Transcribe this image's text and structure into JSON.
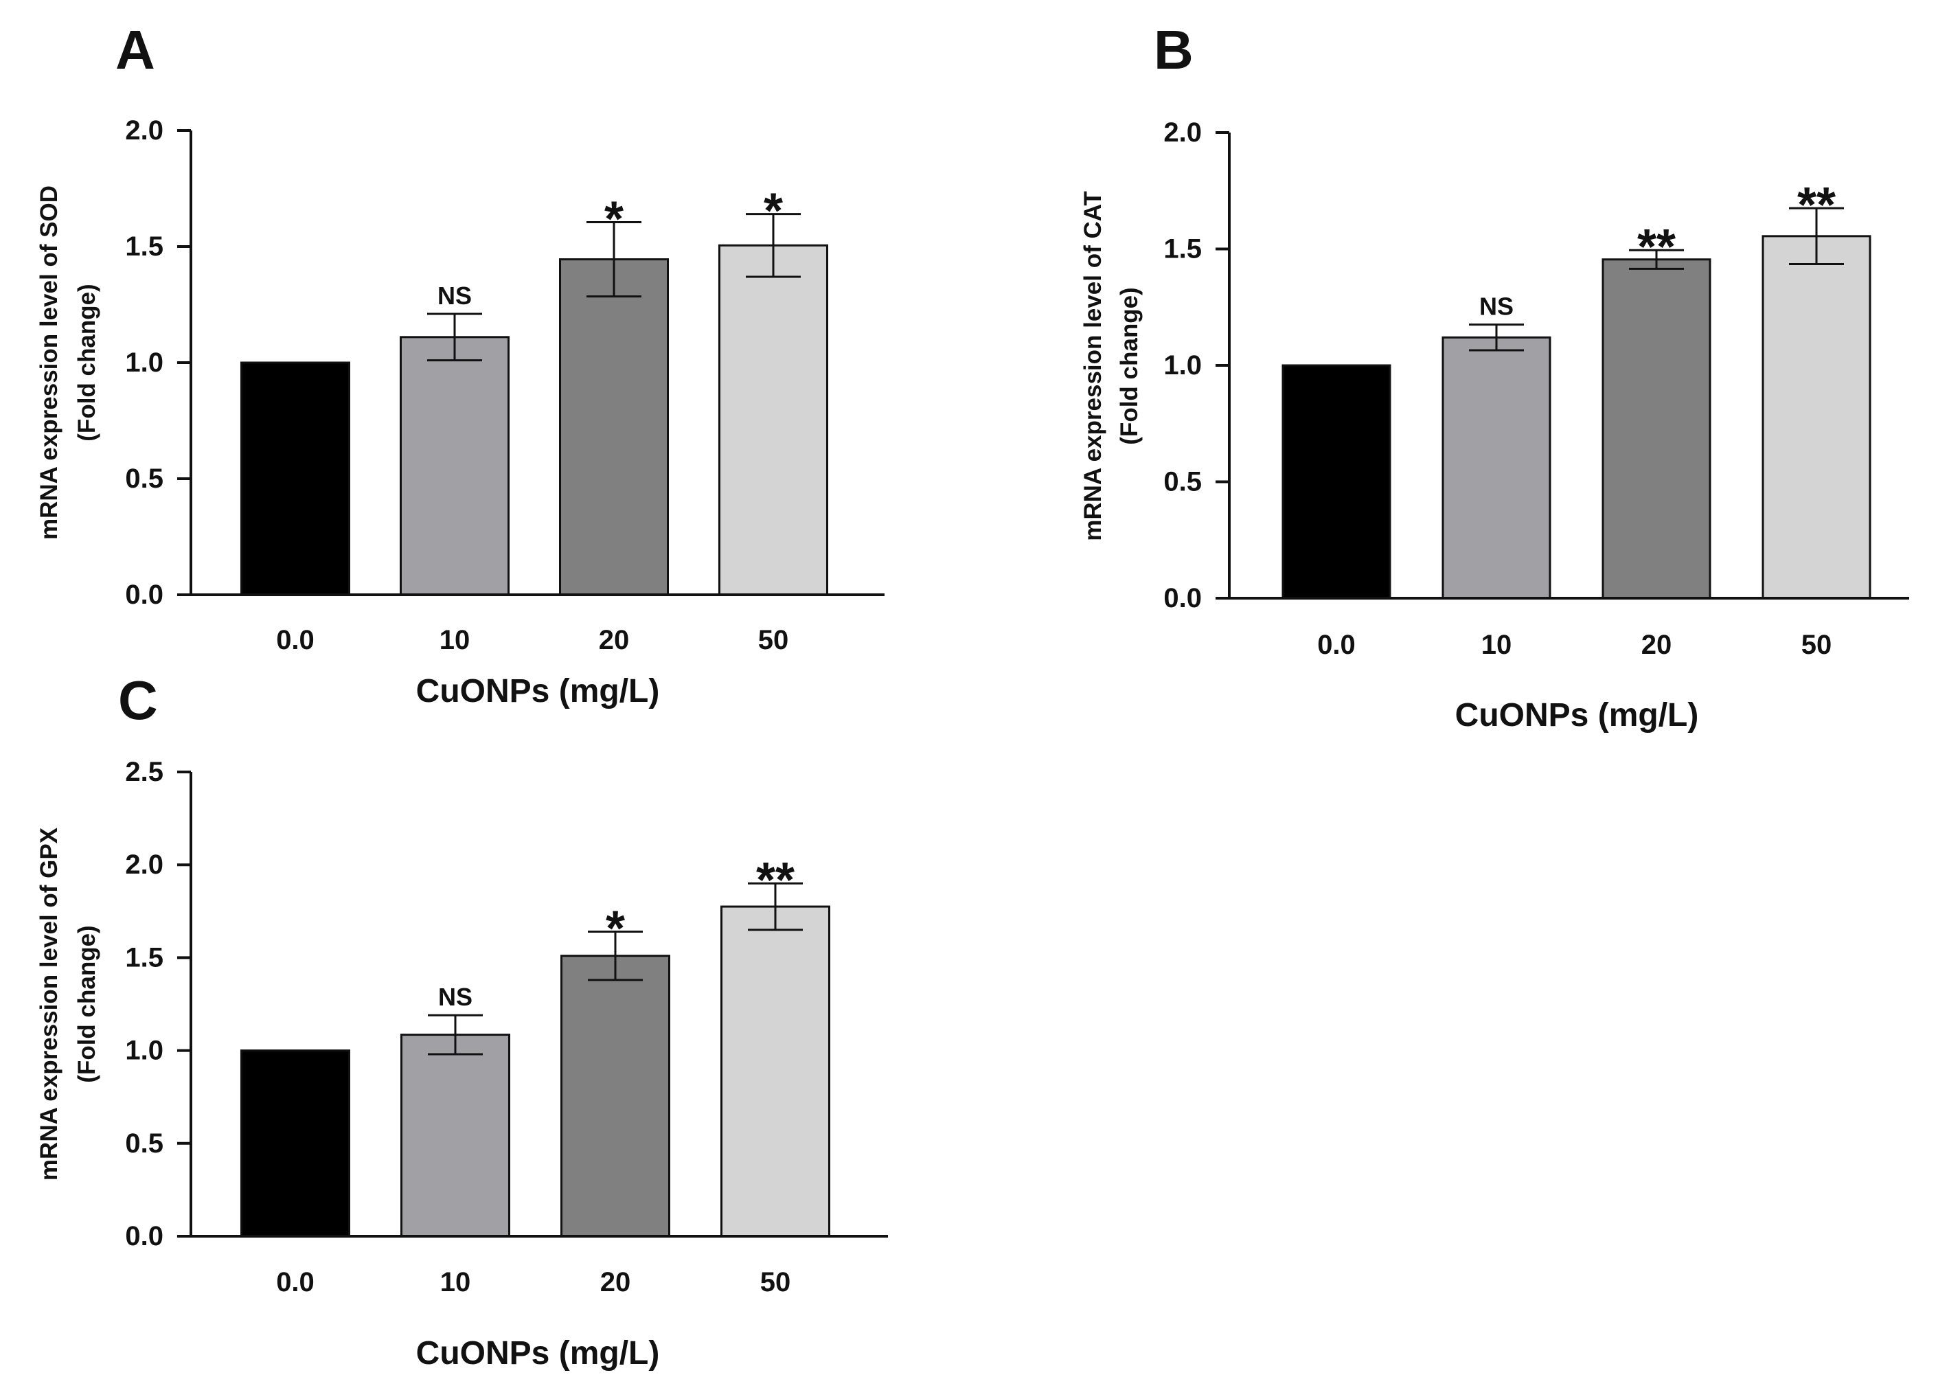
{
  "chart_data": [
    {
      "panel_label": "A",
      "type": "bar",
      "title": "",
      "categories": [
        "0.0",
        "10",
        "20",
        "50"
      ],
      "values": [
        1.0,
        1.11,
        1.445,
        1.505
      ],
      "errors": [
        0,
        0.1,
        0.16,
        0.135
      ],
      "annotations": [
        "",
        "NS",
        "*",
        "*"
      ],
      "colors": [
        "#000000",
        "#a0a0a5",
        "#808080",
        "#d4d4d4"
      ],
      "xlabel": "CuONPs (mg/L)",
      "ylabel_line1": "mRNA expression level of SOD",
      "ylabel_line2": "(Fold change)",
      "ylim": [
        0,
        2.0
      ],
      "yticks": [
        "0.0",
        "0.5",
        "1.0",
        "1.5",
        "2.0"
      ],
      "grid": false,
      "legend": "none"
    },
    {
      "panel_label": "B",
      "type": "bar",
      "title": "",
      "categories": [
        "0.0",
        "10",
        "20",
        "50"
      ],
      "values": [
        1.0,
        1.12,
        1.455,
        1.555
      ],
      "errors": [
        0,
        0.055,
        0.04,
        0.12
      ],
      "annotations": [
        "",
        "NS",
        "**",
        "**"
      ],
      "colors": [
        "#000000",
        "#a0a0a5",
        "#808080",
        "#d4d4d4"
      ],
      "xlabel": "CuONPs (mg/L)",
      "ylabel_line1": "mRNA expression level of CAT",
      "ylabel_line2": "(Fold change)",
      "ylim": [
        0,
        2.0
      ],
      "yticks": [
        "0.0",
        "0.5",
        "1.0",
        "1.5",
        "2.0"
      ],
      "grid": false,
      "legend": "none"
    },
    {
      "panel_label": "C",
      "type": "bar",
      "title": "",
      "categories": [
        "0.0",
        "10",
        "20",
        "50"
      ],
      "values": [
        1.0,
        1.085,
        1.51,
        1.775
      ],
      "errors": [
        0,
        0.105,
        0.13,
        0.125
      ],
      "annotations": [
        "",
        "NS",
        "*",
        "**"
      ],
      "colors": [
        "#000000",
        "#a0a0a5",
        "#808080",
        "#d4d4d4"
      ],
      "xlabel": "CuONPs (mg/L)",
      "ylabel_line1": "mRNA expression level of GPX",
      "ylabel_line2": "(Fold change)",
      "ylim": [
        0,
        2.5
      ],
      "yticks": [
        "0.0",
        "0.5",
        "1.0",
        "1.5",
        "2.0",
        "2.5"
      ],
      "grid": false,
      "legend": "none"
    }
  ]
}
